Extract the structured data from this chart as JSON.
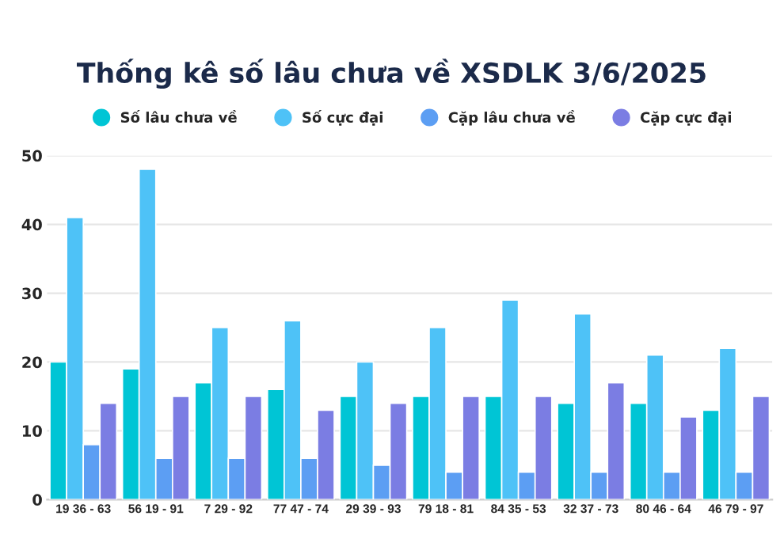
{
  "chart_data": {
    "type": "bar",
    "title": "Thống kê số lâu chưa về XSDLK 3/6/2025",
    "categories": [
      "19 36 - 63",
      "56 19 - 91",
      "7 29 - 92",
      "77 47 - 74",
      "29 39 - 93",
      "79 18 - 81",
      "84 35 - 53",
      "32 37 - 73",
      "80 46 - 64",
      "46 79 - 97"
    ],
    "series": [
      {
        "name": "Số lâu chưa về",
        "color": "#00c5d5",
        "values": [
          20,
          19,
          17,
          16,
          15,
          15,
          15,
          14,
          14,
          13
        ]
      },
      {
        "name": "Số cực đại",
        "color": "#4ec2f7",
        "values": [
          41,
          48,
          25,
          26,
          20,
          25,
          29,
          27,
          21,
          22
        ]
      },
      {
        "name": "Cặp lâu chưa về",
        "color": "#5c9ef3",
        "values": [
          8,
          6,
          6,
          6,
          5,
          4,
          4,
          4,
          4,
          4
        ]
      },
      {
        "name": "Cặp cực đại",
        "color": "#7b7de3",
        "values": [
          14,
          15,
          15,
          13,
          14,
          15,
          15,
          17,
          12,
          15
        ]
      }
    ],
    "ylim": [
      0,
      50
    ],
    "yticks": [
      0,
      10,
      20,
      30,
      40,
      50
    ],
    "grid": "y",
    "legend": "top"
  }
}
